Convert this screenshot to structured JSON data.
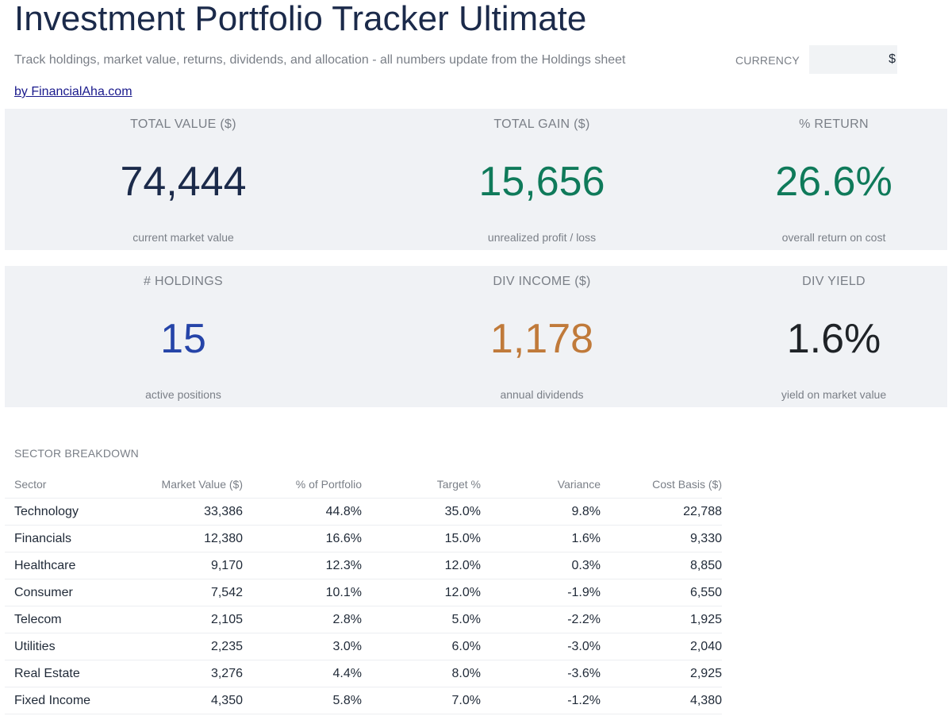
{
  "header": {
    "title": "Investment Portfolio Tracker Ultimate",
    "subtitle": "Track holdings, market value, returns, dividends, and allocation - all numbers update from the Holdings sheet",
    "byline": "by FinancialAha.com",
    "currency_label": "CURRENCY",
    "currency_value": "$"
  },
  "kpis_row1": [
    {
      "label": "TOTAL VALUE ($)",
      "value": "74,444",
      "note": "current market value",
      "color": "#1b2a4a"
    },
    {
      "label": "TOTAL GAIN ($)",
      "value": "15,656",
      "note": "unrealized profit / loss",
      "color": "#0f7a5a"
    },
    {
      "label": "% RETURN",
      "value": "26.6%",
      "note": "overall return on cost",
      "color": "#0f7a5a"
    }
  ],
  "kpis_row2": [
    {
      "label": "# HOLDINGS",
      "value": "15",
      "note": "active positions",
      "color": "#2544a8"
    },
    {
      "label": "DIV INCOME ($)",
      "value": "1,178",
      "note": "annual dividends",
      "color": "#c07a3a"
    },
    {
      "label": "DIV YIELD",
      "value": "1.6%",
      "note": "yield on market value",
      "color": "#1f2327"
    }
  ],
  "sector": {
    "heading": "SECTOR BREAKDOWN",
    "columns": [
      "Sector",
      "Market Value ($)",
      "% of Portfolio",
      "Target %",
      "Variance",
      "Cost Basis ($)"
    ],
    "rows": [
      [
        "Technology",
        "33,386",
        "44.8%",
        "35.0%",
        "9.8%",
        "22,788"
      ],
      [
        "Financials",
        "12,380",
        "16.6%",
        "15.0%",
        "1.6%",
        "9,330"
      ],
      [
        "Healthcare",
        "9,170",
        "12.3%",
        "12.0%",
        "0.3%",
        "8,850"
      ],
      [
        "Consumer",
        "7,542",
        "10.1%",
        "12.0%",
        "-1.9%",
        "6,550"
      ],
      [
        "Telecom",
        "2,105",
        "2.8%",
        "5.0%",
        "-2.2%",
        "1,925"
      ],
      [
        "Utilities",
        "2,235",
        "3.0%",
        "6.0%",
        "-3.0%",
        "2,040"
      ],
      [
        "Real Estate",
        "3,276",
        "4.4%",
        "8.0%",
        "-3.6%",
        "2,925"
      ],
      [
        "Fixed Income",
        "4,350",
        "5.8%",
        "7.0%",
        "-1.2%",
        "4,380"
      ]
    ]
  }
}
